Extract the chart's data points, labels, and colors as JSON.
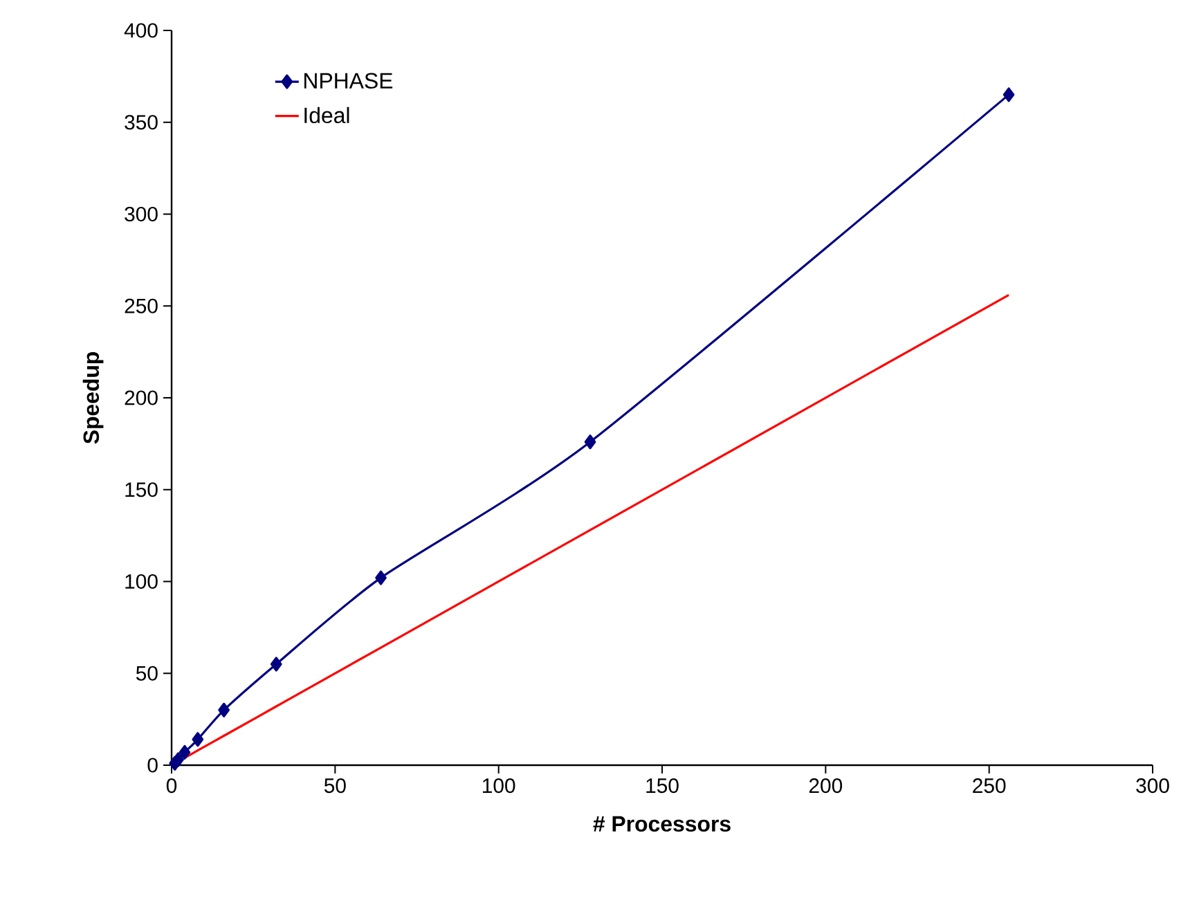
{
  "chart_data": {
    "type": "line",
    "xlabel": "# Processors",
    "ylabel": "Speedup",
    "xlim": [
      0,
      300
    ],
    "xticks": [
      0,
      50,
      100,
      150,
      200,
      250,
      300
    ],
    "ylim": [
      0,
      400
    ],
    "yticks": [
      0,
      50,
      100,
      150,
      200,
      250,
      300,
      350,
      400
    ],
    "grid": false,
    "legend": "top left",
    "series": [
      {
        "name": "NPHASE",
        "color": "#000080",
        "marker": "diamond",
        "x": [
          1,
          2,
          4,
          8,
          16,
          32,
          64,
          128,
          256
        ],
        "values": [
          1,
          3,
          7,
          14,
          30,
          55,
          102,
          176,
          365
        ]
      },
      {
        "name": "Ideal",
        "color": "#ff0000",
        "marker": "none",
        "x": [
          4,
          8,
          16,
          32,
          64,
          128,
          256
        ],
        "values": [
          4,
          8,
          16,
          32,
          64,
          128,
          256
        ]
      }
    ]
  }
}
